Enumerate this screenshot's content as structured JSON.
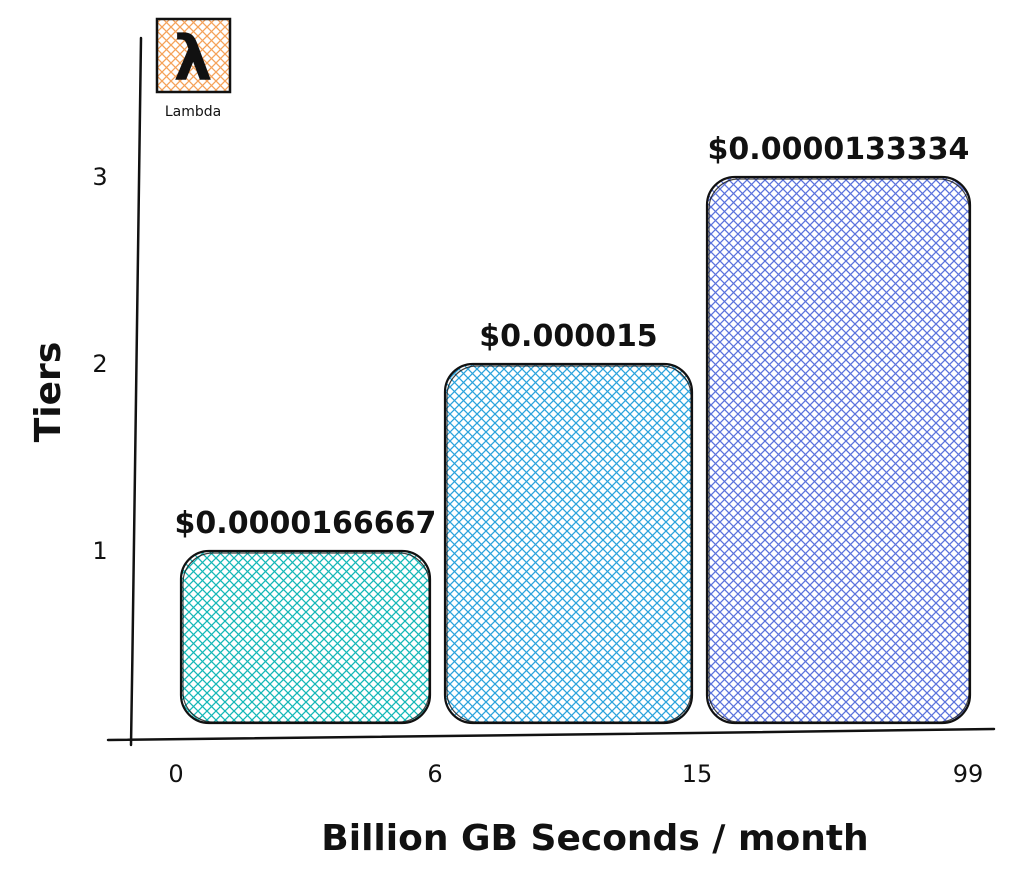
{
  "logo": {
    "label": "Lambda",
    "glyph": "λ",
    "icon": "lambda-icon",
    "accent": "#f5a259"
  },
  "chart_data": {
    "type": "bar",
    "title": "",
    "xlabel": "Billion GB Seconds / month",
    "ylabel": "Tiers",
    "x_ticks": [
      "0",
      "6",
      "15",
      "99"
    ],
    "y_ticks": [
      "1",
      "2",
      "3"
    ],
    "bars": [
      {
        "x_start": "0",
        "x_end": "6",
        "tier": 1,
        "price_label": "$0.0000166667",
        "color": "#14b8b8"
      },
      {
        "x_start": "6",
        "x_end": "15",
        "tier": 2,
        "price_label": "$0.000015",
        "color": "#2ba3dd"
      },
      {
        "x_start": "15",
        "x_end": "99",
        "tier": 3,
        "price_label": "$0.0000133334",
        "color": "#5b73dd"
      }
    ],
    "ylim": [
      0,
      3
    ],
    "grid": false,
    "legend": "none"
  }
}
